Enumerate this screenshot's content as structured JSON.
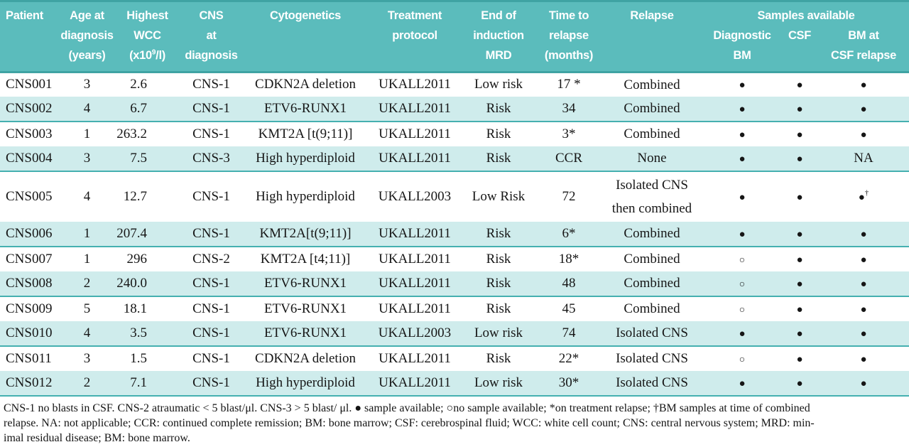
{
  "table": {
    "header": {
      "patient": "Patient",
      "age": "Age at\ndiagnosis\n(years)",
      "wcc_top": "Highest\nWCC",
      "wcc_unit_open": "(x10",
      "wcc_unit_sup": "9",
      "wcc_unit_close": "/l)",
      "cns": "CNS\nat\ndiagnosis",
      "cytogenetics": "Cytogenetics",
      "protocol": "Treatment\nprotocol",
      "mrd": "End of\ninduction\nMRD",
      "relapse_time": "Time to\nrelapse\n(months)",
      "relapse": "Relapse",
      "samples_group": "Samples available",
      "diagnostic_bm": "Diagnostic\nBM",
      "csf": "CSF",
      "bm_at_csf_relapse": "BM at\nCSF relapse"
    },
    "rows": [
      {
        "patient": "CNS001",
        "age": "3",
        "wcc": "2.6",
        "cns": "CNS-1",
        "cytogenetics": "CDKN2A deletion",
        "protocol": "UKALL2011",
        "mrd": "Low risk",
        "time_to_relapse": "17 *",
        "relapse": "Combined",
        "samples": {
          "diagnostic_bm": "filled",
          "csf": "filled",
          "bm_at_csf_relapse": "filled"
        }
      },
      {
        "patient": "CNS002",
        "age": "4",
        "wcc": "6.7",
        "cns": "CNS-1",
        "cytogenetics": "ETV6-RUNX1",
        "protocol": "UKALL2011",
        "mrd": "Risk",
        "time_to_relapse": "34",
        "relapse": "Combined",
        "samples": {
          "diagnostic_bm": "filled",
          "csf": "filled",
          "bm_at_csf_relapse": "filled"
        }
      },
      {
        "patient": "CNS003",
        "age": "1",
        "wcc": "263.2",
        "cns": "CNS-1",
        "cytogenetics": "KMT2A [t(9;11)]",
        "protocol": "UKALL2011",
        "mrd": "Risk",
        "time_to_relapse": "3*",
        "relapse": "Combined",
        "samples": {
          "diagnostic_bm": "filled",
          "csf": "filled",
          "bm_at_csf_relapse": "filled"
        }
      },
      {
        "patient": "CNS004",
        "age": "3",
        "wcc": "7.5",
        "cns": "CNS-3",
        "cytogenetics": "High hyperdiploid",
        "protocol": "UKALL2011",
        "mrd": "Risk",
        "time_to_relapse": "CCR",
        "relapse": "None",
        "samples": {
          "diagnostic_bm": "filled",
          "csf": "filled",
          "bm_at_csf_relapse": "na"
        }
      },
      {
        "patient": "CNS005",
        "age": "4",
        "wcc": "12.7",
        "cns": "CNS-1",
        "cytogenetics": "High hyperdiploid",
        "protocol": "UKALL2003",
        "mrd": "Low Risk",
        "time_to_relapse": "72",
        "relapse": "Isolated CNS\nthen combined",
        "samples": {
          "diagnostic_bm": "filled",
          "csf": "filled",
          "bm_at_csf_relapse": "filled_dagger"
        }
      },
      {
        "patient": "CNS006",
        "age": "1",
        "wcc": "207.4",
        "cns": "CNS-1",
        "cytogenetics": "KMT2A[t(9;11)]",
        "protocol": "UKALL2011",
        "mrd": "Risk",
        "time_to_relapse": "6*",
        "relapse": "Combined",
        "samples": {
          "diagnostic_bm": "filled",
          "csf": "filled",
          "bm_at_csf_relapse": "filled"
        }
      },
      {
        "patient": "CNS007",
        "age": "1",
        "wcc": "296",
        "cns": "CNS-2",
        "cytogenetics": "KMT2A [t4;11)]",
        "protocol": "UKALL2011",
        "mrd": "Risk",
        "time_to_relapse": "18*",
        "relapse": "Combined",
        "samples": {
          "diagnostic_bm": "open",
          "csf": "filled",
          "bm_at_csf_relapse": "filled"
        }
      },
      {
        "patient": "CNS008",
        "age": "2",
        "wcc": "240.0",
        "cns": "CNS-1",
        "cytogenetics": "ETV6-RUNX1",
        "protocol": "UKALL2011",
        "mrd": "Risk",
        "time_to_relapse": "48",
        "relapse": "Combined",
        "samples": {
          "diagnostic_bm": "open",
          "csf": "filled",
          "bm_at_csf_relapse": "filled"
        }
      },
      {
        "patient": "CNS009",
        "age": "5",
        "wcc": "18.1",
        "cns": "CNS-1",
        "cytogenetics": "ETV6-RUNX1",
        "protocol": "UKALL2011",
        "mrd": "Risk",
        "time_to_relapse": "45",
        "relapse": "Combined",
        "samples": {
          "diagnostic_bm": "open",
          "csf": "filled",
          "bm_at_csf_relapse": "filled"
        }
      },
      {
        "patient": "CNS010",
        "age": "4",
        "wcc": "3.5",
        "cns": "CNS-1",
        "cytogenetics": "ETV6-RUNX1",
        "protocol": "UKALL2003",
        "mrd": "Low risk",
        "time_to_relapse": "74",
        "relapse": "Isolated CNS",
        "samples": {
          "diagnostic_bm": "filled",
          "csf": "filled",
          "bm_at_csf_relapse": "filled"
        }
      },
      {
        "patient": "CNS011",
        "age": "3",
        "wcc": "1.5",
        "cns": "CNS-1",
        "cytogenetics": "CDKN2A deletion",
        "protocol": "UKALL2011",
        "mrd": "Risk",
        "time_to_relapse": "22*",
        "relapse": "Isolated CNS",
        "samples": {
          "diagnostic_bm": "open",
          "csf": "filled",
          "bm_at_csf_relapse": "filled"
        }
      },
      {
        "patient": "CNS012",
        "age": "2",
        "wcc": "7.1",
        "cns": "CNS-1",
        "cytogenetics": "High hyperdiploid",
        "protocol": "UKALL2011",
        "mrd": "Low risk",
        "time_to_relapse": "30*",
        "relapse": "Isolated CNS",
        "samples": {
          "diagnostic_bm": "filled",
          "csf": "filled",
          "bm_at_csf_relapse": "filled"
        }
      }
    ]
  },
  "legend_glyphs": {
    "filled": "●",
    "open": "○",
    "dagger": "†",
    "na": "NA"
  },
  "footnote": {
    "lines": [
      "CNS-1 no blasts in CSF. CNS-2 atraumatic < 5 blast/μl. CNS-3 > 5 blast/ μl. ● sample available; ○no sample available; *on treatment relapse; †BM samples at time of combined",
      "relapse. NA: not applicable; CCR: continued complete remission; BM: bone marrow; CSF: cerebrospinal fluid; WCC: white cell count; CNS: central nervous system; MRD: min-",
      "imal residual disease; BM: bone marrow."
    ]
  },
  "colors": {
    "header_teal": "#5bbcbc",
    "header_edge": "#3fa3a3",
    "row_cyan": "#cfecec",
    "row_divider": "#45b0b0",
    "text": "#161616"
  }
}
